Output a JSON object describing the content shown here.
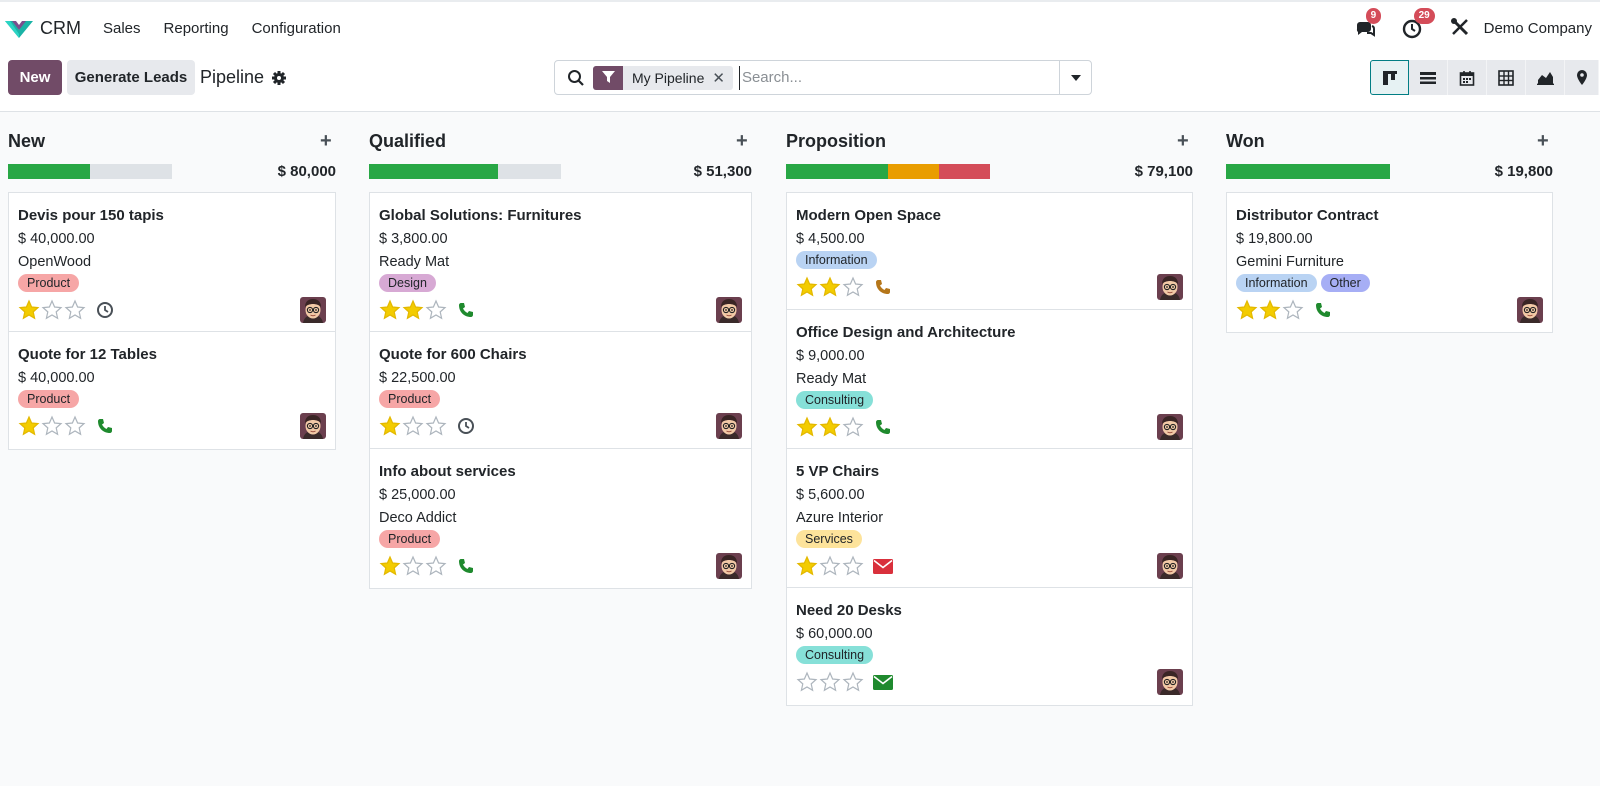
{
  "app": {
    "name": "CRM",
    "menu": [
      "Sales",
      "Reporting",
      "Configuration"
    ],
    "company": "Demo Company",
    "messages_badge": "9",
    "activities_badge": "29"
  },
  "toolbar": {
    "new_label": "New",
    "generate_label": "Generate Leads",
    "breadcrumb": "Pipeline"
  },
  "search": {
    "facet": "My Pipeline",
    "placeholder": "Search..."
  },
  "colors": {
    "brand": "#714b67",
    "success": "#28a745",
    "warning": "#e99d00",
    "danger": "#d44c59",
    "muted": "#dee2e6"
  },
  "columns": [
    {
      "title": "New",
      "total": "$ 80,000",
      "progress": [
        {
          "color": "#28a745",
          "fraction": 0.5
        },
        {
          "color": "#dee2e6",
          "fraction": 0.5
        }
      ],
      "cards": [
        {
          "title": "Devis pour 150 tapis",
          "amount": "$ 40,000.00",
          "company": "OpenWood",
          "tags": [
            {
              "label": "Product",
              "color": "#f6a6a6"
            }
          ],
          "stars": 1,
          "activity": "clock"
        },
        {
          "title": "Quote for 12 Tables",
          "amount": "$ 40,000.00",
          "company": "",
          "tags": [
            {
              "label": "Product",
              "color": "#f6a6a6"
            }
          ],
          "stars": 1,
          "activity": "phone-green"
        }
      ]
    },
    {
      "title": "Qualified",
      "total": "$ 51,300",
      "progress": [
        {
          "color": "#28a745",
          "fraction": 0.67
        },
        {
          "color": "#dee2e6",
          "fraction": 0.33
        }
      ],
      "cards": [
        {
          "title": "Global Solutions: Furnitures",
          "amount": "$ 3,800.00",
          "company": "Ready Mat",
          "tags": [
            {
              "label": "Design",
              "color": "#d7a9d4"
            }
          ],
          "stars": 2,
          "activity": "phone-green"
        },
        {
          "title": "Quote for 600 Chairs",
          "amount": "$ 22,500.00",
          "company": "",
          "tags": [
            {
              "label": "Product",
              "color": "#f6a6a6"
            }
          ],
          "stars": 1,
          "activity": "clock"
        },
        {
          "title": "Info about services",
          "amount": "$ 25,000.00",
          "company": "Deco Addict",
          "tags": [
            {
              "label": "Product",
              "color": "#f6a6a6"
            }
          ],
          "stars": 1,
          "activity": "phone-green"
        }
      ]
    },
    {
      "title": "Proposition",
      "total": "$ 79,100",
      "progress": [
        {
          "color": "#28a745",
          "fraction": 0.5
        },
        {
          "color": "#e99d00",
          "fraction": 0.25
        },
        {
          "color": "#d44c59",
          "fraction": 0.25
        }
      ],
      "cards": [
        {
          "title": "Modern Open Space",
          "amount": "$ 4,500.00",
          "company": "",
          "tags": [
            {
              "label": "Information",
              "color": "#b9d3f3"
            }
          ],
          "stars": 2,
          "activity": "phone-orange"
        },
        {
          "title": "Office Design and Architecture",
          "amount": "$ 9,000.00",
          "company": "Ready Mat",
          "tags": [
            {
              "label": "Consulting",
              "color": "#86e0d8"
            }
          ],
          "stars": 2,
          "activity": "phone-green"
        },
        {
          "title": "5 VP Chairs",
          "amount": "$ 5,600.00",
          "company": "Azure Interior",
          "tags": [
            {
              "label": "Services",
              "color": "#fde39b"
            }
          ],
          "stars": 1,
          "activity": "mail-red"
        },
        {
          "title": "Need 20 Desks",
          "amount": "$ 60,000.00",
          "company": "",
          "tags": [
            {
              "label": "Consulting",
              "color": "#86e0d8"
            }
          ],
          "stars": 0,
          "activity": "mail-green"
        }
      ]
    },
    {
      "title": "Won",
      "total": "$ 19,800",
      "progress": [
        {
          "color": "#28a745",
          "fraction": 1.0
        }
      ],
      "cards": [
        {
          "title": "Distributor Contract",
          "amount": "$ 19,800.00",
          "company": "Gemini Furniture",
          "tags": [
            {
              "label": "Information",
              "color": "#b9d3f3"
            },
            {
              "label": "Other",
              "color": "#a6aef5"
            }
          ],
          "stars": 2,
          "activity": "phone-green"
        }
      ]
    }
  ]
}
